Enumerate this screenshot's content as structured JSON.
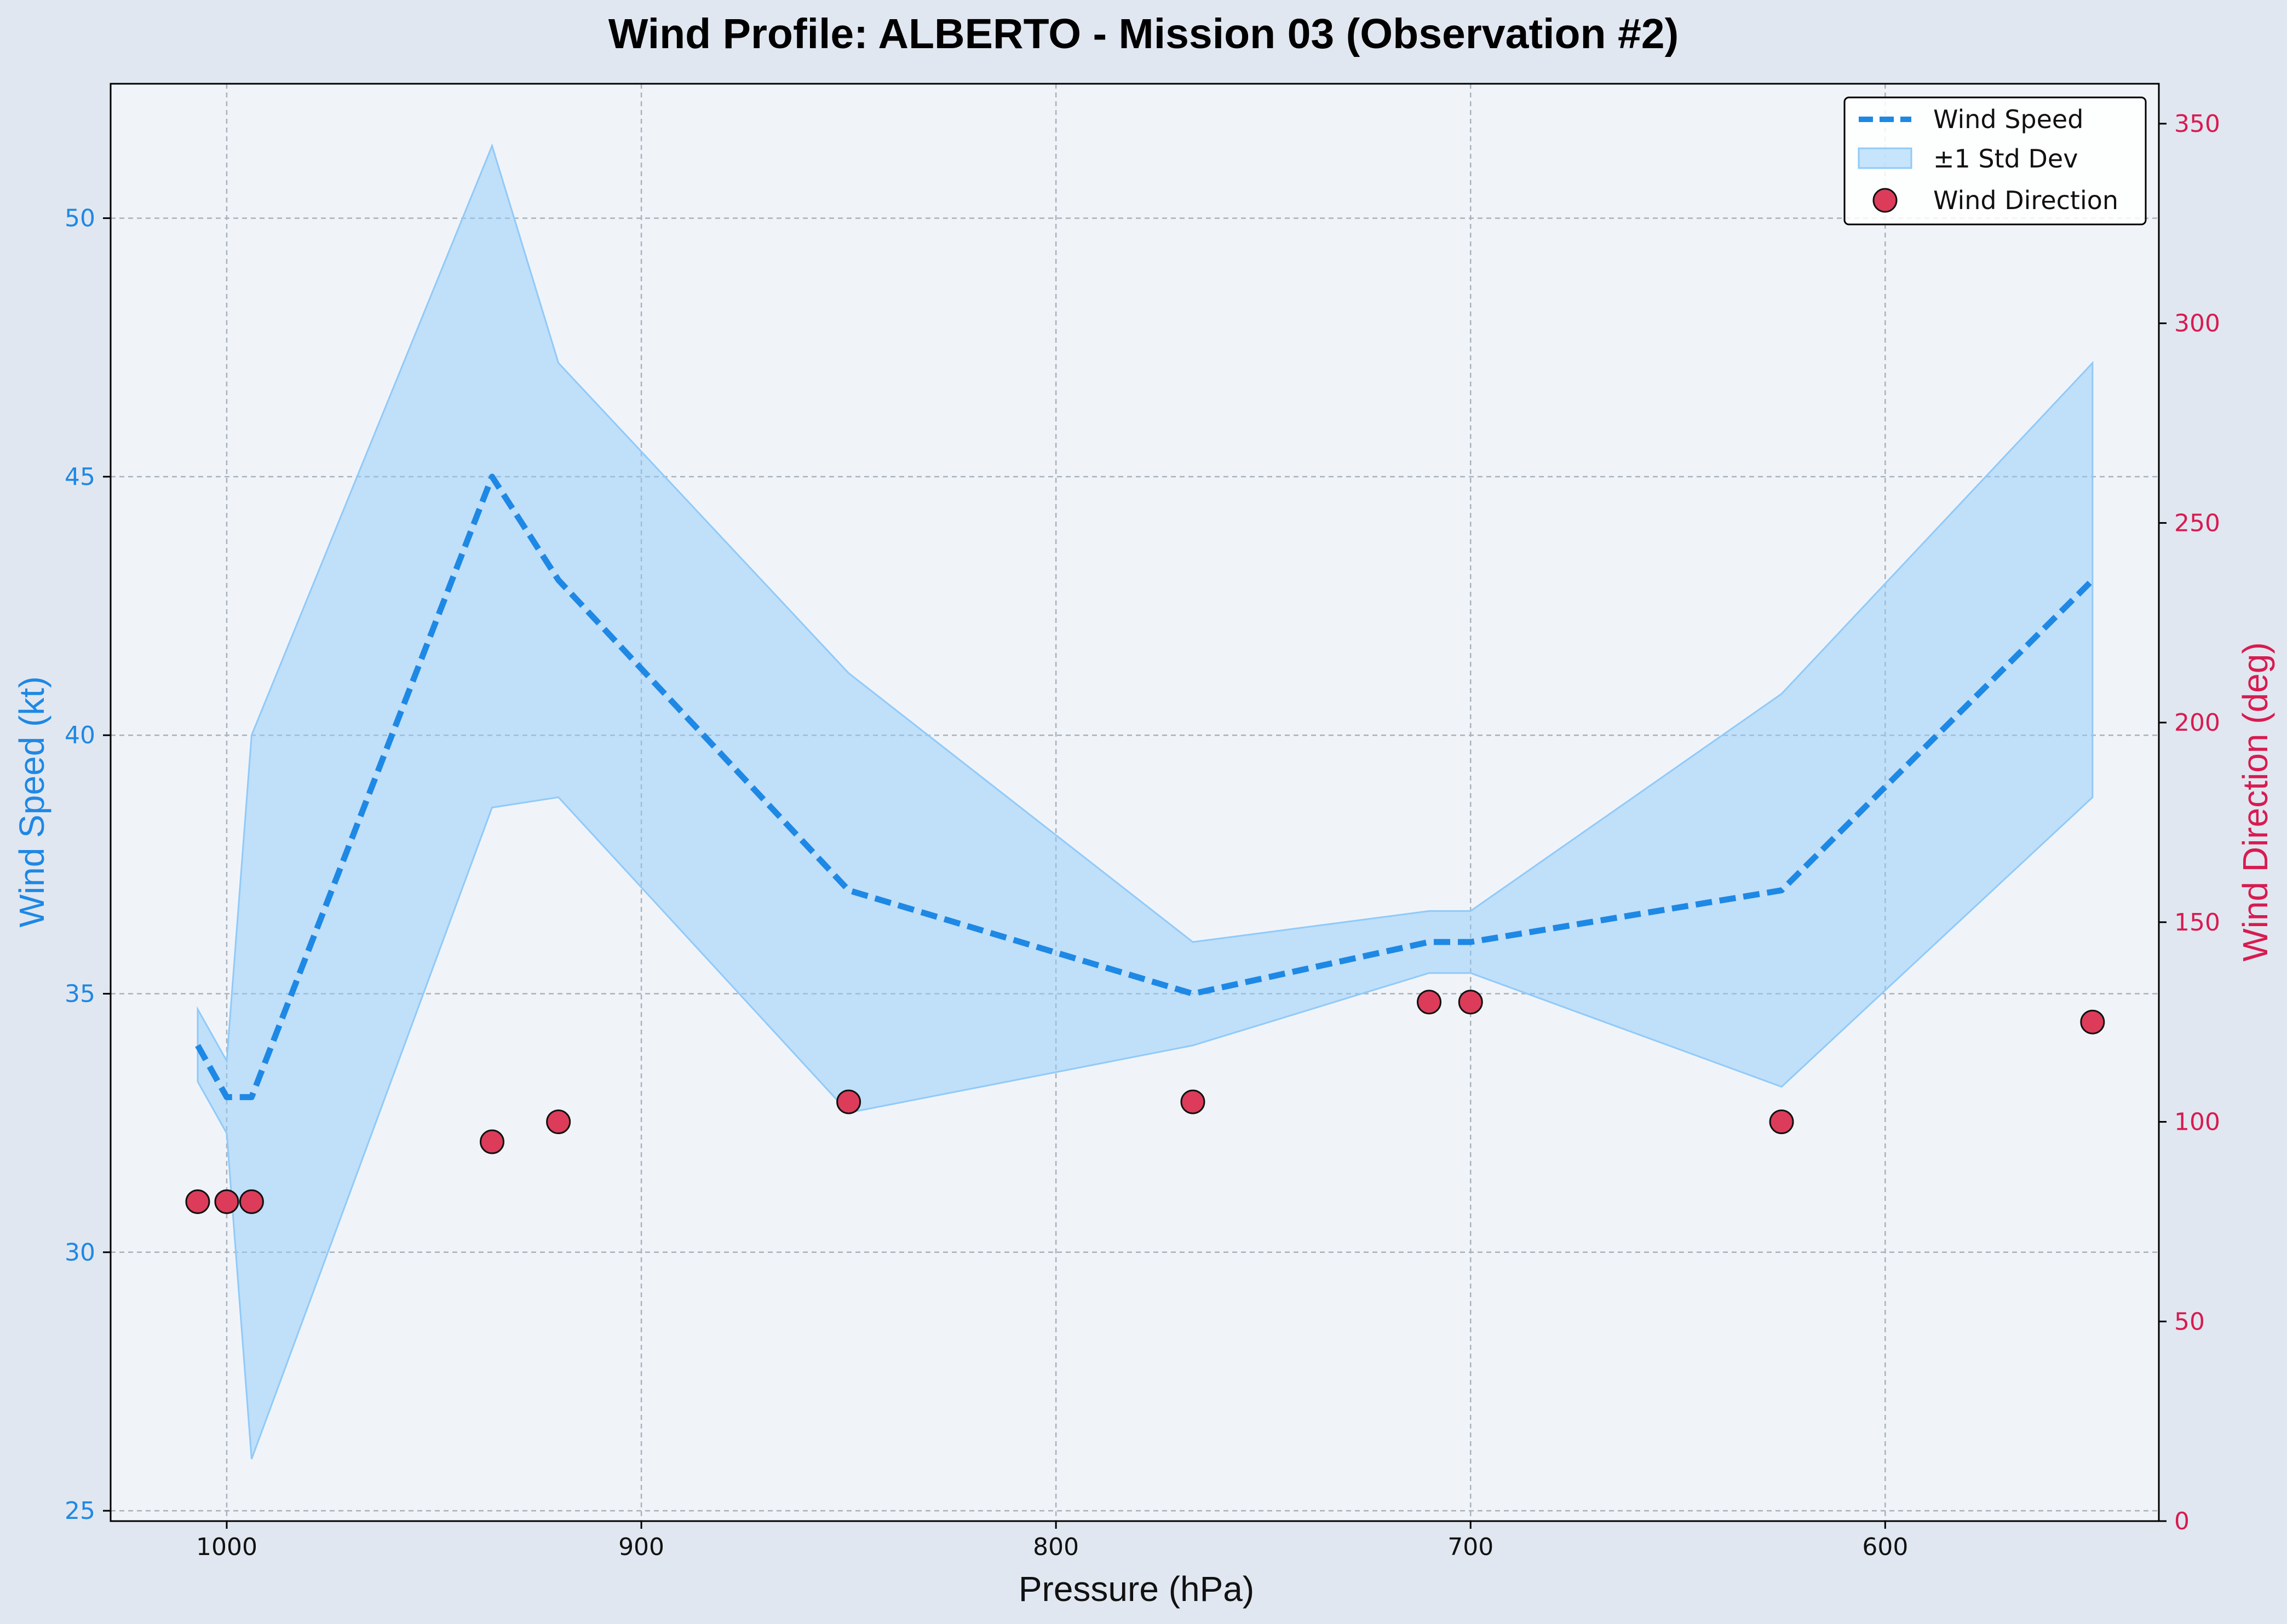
{
  "chart_data": {
    "type": "line",
    "title": "Wind Profile: ALBERTO - Mission 03 (Observation #2)",
    "xlabel": "Pressure (hPa)",
    "ylabel_left": "Wind Speed (kt)",
    "ylabel_right": "Wind Direction (deg)",
    "x_inverted": true,
    "xlim": [
      1028,
      534
    ],
    "ylim_left": [
      24.8,
      52.6
    ],
    "ylim_right": [
      0,
      360
    ],
    "x_ticks": [
      1000,
      900,
      800,
      700,
      600
    ],
    "y_left_ticks": [
      25,
      30,
      35,
      40,
      45,
      50
    ],
    "y_right_ticks": [
      0,
      50,
      100,
      150,
      200,
      250,
      300,
      350
    ],
    "grid": true,
    "legend_position": "top-right",
    "legend": [
      "Wind Speed",
      "±1 Std Dev",
      "Wind Direction"
    ],
    "x": [
      1007,
      1000,
      994,
      936,
      920,
      850,
      767,
      710,
      700,
      625,
      550
    ],
    "series": [
      {
        "name": "Wind Speed",
        "axis": "left",
        "style": "dashed-line",
        "color": "#1e88e5",
        "values": [
          34,
          33,
          33,
          45,
          43,
          37,
          35,
          36,
          36,
          37,
          43
        ]
      },
      {
        "name": "±1 Std Dev",
        "axis": "left",
        "style": "band",
        "color": "#90caf9",
        "lower": [
          33.3,
          32.3,
          26.0,
          38.6,
          38.8,
          32.7,
          34.0,
          35.4,
          35.4,
          33.2,
          38.8
        ],
        "upper": [
          34.7,
          33.7,
          40.0,
          51.4,
          47.2,
          41.2,
          36.0,
          36.6,
          36.6,
          40.8,
          47.2
        ]
      },
      {
        "name": "Wind Direction",
        "axis": "right",
        "style": "scatter",
        "color": "#dc3c5a",
        "values": [
          80,
          80,
          80,
          95,
          100,
          105,
          105,
          130,
          130,
          100,
          125
        ]
      }
    ]
  },
  "colors": {
    "speed": "#1e88e5",
    "band": "#90caf9",
    "direction": "#dc3c5a",
    "right_axis": "#d81b50",
    "plot_bg": "#f0f4f9",
    "page_bg": "#e1e7f0",
    "grid": "#a9b1bb"
  }
}
